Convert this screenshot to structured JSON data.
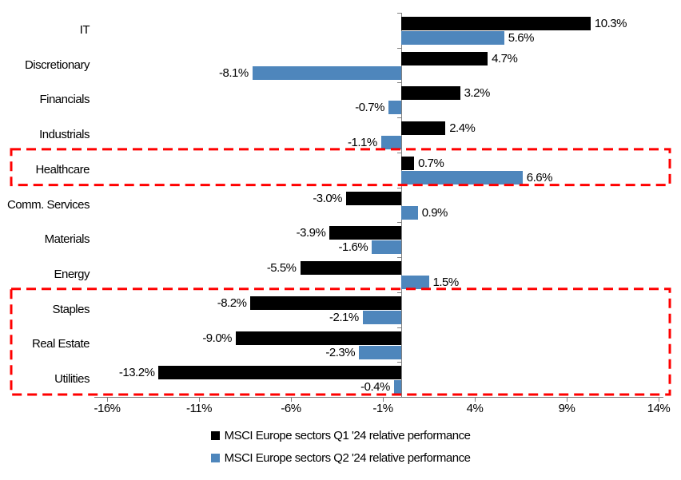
{
  "chart_data": {
    "type": "bar",
    "orientation": "horizontal",
    "categories": [
      "IT",
      "Discretionary",
      "Financials",
      "Industrials",
      "Healthcare",
      "Comm. Services",
      "Materials",
      "Energy",
      "Staples",
      "Real Estate",
      "Utilities"
    ],
    "series": [
      {
        "name": "MSCI Europe sectors Q1 '24 relative performance",
        "color": "#000000",
        "values": [
          10.3,
          4.7,
          3.2,
          2.4,
          0.7,
          -3.0,
          -3.9,
          -5.5,
          -8.2,
          -9.0,
          -13.2
        ],
        "labels": [
          "10.3%",
          "4.7%",
          "3.2%",
          "2.4%",
          "0.7%",
          "-3.0%",
          "-3.9%",
          "-5.5%",
          "-8.2%",
          "-9.0%",
          "-13.2%"
        ]
      },
      {
        "name": "MSCI Europe sectors Q2 '24 relative performance",
        "color": "#4E86BC",
        "values": [
          5.6,
          -8.1,
          -0.7,
          -1.1,
          6.6,
          0.9,
          -1.6,
          1.5,
          -2.1,
          -2.3,
          -0.4
        ],
        "labels": [
          "5.6%",
          "-8.1%",
          "-0.7%",
          "-1.1%",
          "6.6%",
          "0.9%",
          "-1.6%",
          "1.5%",
          "-2.1%",
          "-2.3%",
          "-0.4%"
        ]
      }
    ],
    "x_ticks": [
      {
        "value": -16,
        "label": "-16%"
      },
      {
        "value": -11,
        "label": "-11%"
      },
      {
        "value": -6,
        "label": "-6%"
      },
      {
        "value": -1,
        "label": "-1%"
      },
      {
        "value": 4,
        "label": "4%"
      },
      {
        "value": 9,
        "label": "9%"
      },
      {
        "value": 14,
        "label": "14%"
      }
    ],
    "xlim": [
      -16,
      14
    ],
    "axis_color": "#808080",
    "grid": false,
    "legend_position": "bottom",
    "highlights": {
      "color": "#FF0000",
      "boxes": [
        {
          "label": "Healthcare",
          "rows": [
            4,
            4
          ]
        },
        {
          "label": "Staples to Utilities",
          "rows": [
            8,
            10
          ]
        }
      ]
    }
  }
}
